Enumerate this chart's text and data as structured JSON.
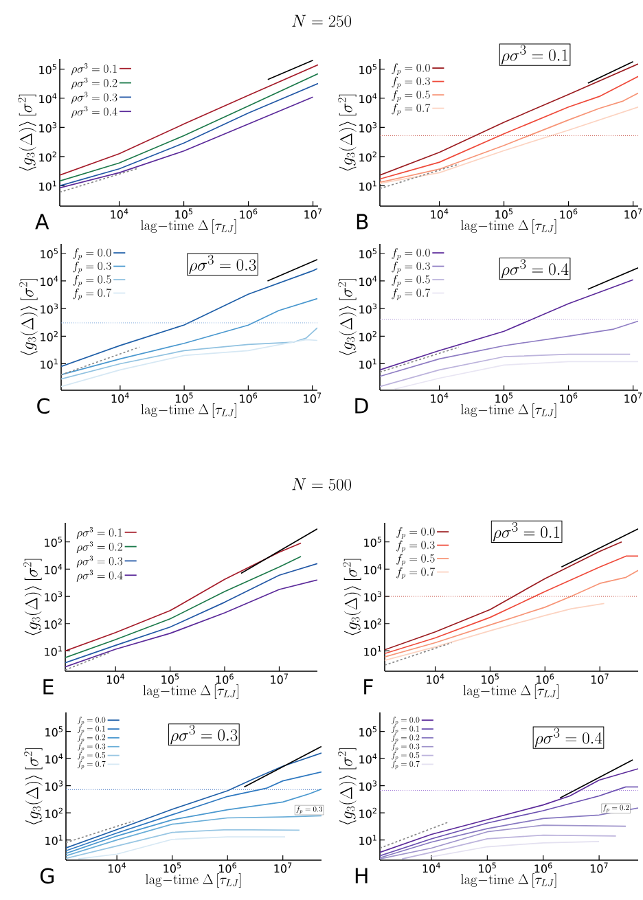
{
  "chart_data": [
    {
      "type": "line",
      "title": "N = 250",
      "xlabel": "\\mathrm{lag{-}time}\\;\\Delta\\,[\\tau_{LJ}]",
      "ylabel": "\\langle g_3(\\Delta)\\rangle\\,[\\sigma^2]",
      "log": "xy",
      "legend": "top left",
      "xlim": [
        1200,
        12000000
      ],
      "ylim": [
        2,
        220000
      ],
      "xticks": [
        {
          "value": 10000,
          "label": "10$^{4}$"
        },
        {
          "value": 100000,
          "label": "10$^{5}$"
        },
        {
          "value": 1000000,
          "label": "10$^{6}$"
        },
        {
          "value": 10000000,
          "label": "10$^{7}$"
        }
      ],
      "yticks": [
        {
          "value": 10,
          "label": "10$^{1}$"
        },
        {
          "value": 100,
          "label": "10$^{2}$"
        },
        {
          "value": 1000,
          "label": "10$^{3}$"
        },
        {
          "value": 10000,
          "label": "10$^{4}$"
        },
        {
          "value": 100000,
          "label": "10$^{5}$"
        }
      ],
      "annotations": [
        "A"
      ],
      "series": [
        {
          "name": "\\rho\\sigma^3 = 0.1",
          "color": "#a51c2a",
          "x": [
            1200,
            10000,
            100000,
            1000000,
            12000000
          ],
          "values": [
            23,
            125,
            1300,
            12600,
            140000
          ]
        },
        {
          "name": "\\rho\\sigma^3 = 0.2",
          "color": "#1d7a4b",
          "x": [
            1200,
            10000,
            100000,
            1000000,
            12000000
          ],
          "values": [
            14.5,
            60,
            520,
            5400,
            69000
          ]
        },
        {
          "name": "\\rho\\sigma^3 = 0.3",
          "color": "#2358a6",
          "x": [
            1200,
            10000,
            100000,
            1000000,
            12000000
          ],
          "values": [
            10,
            38,
            290,
            3100,
            32000
          ]
        },
        {
          "name": "\\rho\\sigma^3 = 0.4",
          "color": "#5b2a9a",
          "x": [
            1200,
            10000,
            100000,
            1000000,
            10000000
          ],
          "values": [
            8.5,
            28,
            155,
            1300,
            11000
          ]
        },
        {
          "color": "#000000",
          "x": [
            2000000,
            10000000
          ],
          "values": [
            44000,
            200000
          ]
        },
        {
          "color": "#888888",
          "line_style": "dashed",
          "x": [
            1200,
            20000
          ],
          "values": [
            6,
            40
          ]
        }
      ]
    },
    {
      "type": "line",
      "xlabel": "\\mathrm{lag{-}time}\\;\\Delta\\,[\\tau_{LJ}]",
      "ylabel": "\\langle g_3(\\Delta)\\rangle\\,[\\sigma^2]",
      "log": "xy",
      "legend": "top left",
      "xlim": [
        1200,
        12000000
      ],
      "ylim": [
        2,
        220000
      ],
      "xticks": [
        {
          "value": 10000,
          "label": "10$^{4}$"
        },
        {
          "value": 100000,
          "label": "10$^{5}$"
        },
        {
          "value": 1000000,
          "label": "10$^{6}$"
        },
        {
          "value": 10000000,
          "label": "10$^{7}$"
        }
      ],
      "yticks": [
        {
          "value": 10,
          "label": "10$^{1}$"
        },
        {
          "value": 100,
          "label": "10$^{2}$"
        },
        {
          "value": 1000,
          "label": "10$^{3}$"
        },
        {
          "value": 10000,
          "label": "10$^{4}$"
        },
        {
          "value": 100000,
          "label": "10$^{5}$"
        }
      ],
      "annotations": [
        "B",
        "\\rho\\sigma^3 = 0.1"
      ],
      "ref_lines": [
        {
          "axis": "y",
          "value": 525,
          "color": "#c0392b",
          "line_style": "dotted"
        }
      ],
      "series": [
        {
          "name": "f_p = 0.0",
          "color": "#9b1c20",
          "x": [
            1200,
            10000,
            100000,
            1000000,
            12000000
          ],
          "values": [
            23,
            140,
            1500,
            13500,
            150000
          ]
        },
        {
          "name": "f_p = 0.3",
          "color": "#ef4a3a",
          "x": [
            1200,
            10000,
            100000,
            1000000,
            3000000,
            12000000
          ],
          "values": [
            17,
            64,
            600,
            5000,
            11500,
            56000
          ]
        },
        {
          "name": "f_p = 0.5",
          "color": "#f79577",
          "x": [
            1200,
            10000,
            100000,
            1000000,
            3000000,
            7000000,
            12000000
          ],
          "values": [
            13,
            37,
            240,
            1800,
            4500,
            8000,
            15000
          ]
        },
        {
          "name": "f_p = 0.7",
          "color": "#fcd3c1",
          "x": [
            1200,
            10000,
            100000,
            1000000,
            12000000
          ],
          "values": [
            12,
            28,
            160,
            800,
            5000
          ]
        },
        {
          "color": "#000000",
          "x": [
            2000000,
            10000000
          ],
          "values": [
            33000,
            180000
          ]
        },
        {
          "color": "#888888",
          "line_style": "dashed",
          "x": [
            1200,
            20000
          ],
          "values": [
            8,
            55
          ]
        }
      ]
    },
    {
      "type": "line",
      "xlabel": "\\mathrm{lag{-}time}\\;\\Delta\\,[\\tau_{LJ}]",
      "ylabel": "\\langle g_3(\\Delta)\\rangle\\,[\\sigma^2]",
      "log": "xy",
      "legend": "top left",
      "xlim": [
        1200,
        12000000
      ],
      "ylim": [
        1.1,
        220000
      ],
      "xticks": [
        {
          "value": 10000,
          "label": "10$^{4}$"
        },
        {
          "value": 100000,
          "label": "10$^{5}$"
        },
        {
          "value": 1000000,
          "label": "10$^{6}$"
        },
        {
          "value": 10000000,
          "label": "10$^{7}$"
        }
      ],
      "yticks": [
        {
          "value": 10,
          "label": "10$^{1}$"
        },
        {
          "value": 100,
          "label": "10$^{2}$"
        },
        {
          "value": 1000,
          "label": "10$^{3}$"
        },
        {
          "value": 10000,
          "label": "10$^{4}$"
        },
        {
          "value": 100000,
          "label": "10$^{5}$"
        }
      ],
      "annotations": [
        "C",
        "\\rho\\sigma^3 = 0.3"
      ],
      "ref_lines": [
        {
          "axis": "y",
          "value": 300,
          "color": "#6f9fd8",
          "line_style": "dotted"
        }
      ],
      "series": [
        {
          "name": "f_p = 0.0",
          "color": "#1f5fa8",
          "x": [
            1200,
            10000,
            100000,
            1000000,
            10000000,
            12000000
          ],
          "values": [
            8,
            46,
            255,
            3300,
            23000,
            28000
          ]
        },
        {
          "name": "f_p = 0.3",
          "color": "#4a98cf",
          "x": [
            1200,
            10000,
            100000,
            1000000,
            3000000,
            12000000
          ],
          "values": [
            4,
            15,
            55,
            250,
            850,
            2300
          ]
        },
        {
          "name": "f_p = 0.5",
          "color": "#8fc1e0",
          "x": [
            1200,
            10000,
            100000,
            1000000,
            5000000,
            8000000,
            12000000
          ],
          "values": [
            2.8,
            10,
            30,
            50,
            60,
            85,
            200
          ]
        },
        {
          "name": "f_p = 0.7",
          "color": "#d6e8f4",
          "x": [
            1200,
            10000,
            100000,
            1000000,
            8000000,
            12000000
          ],
          "values": [
            1.5,
            6,
            20,
            30,
            75,
            70
          ]
        },
        {
          "color": "#000000",
          "x": [
            2000000,
            12000000
          ],
          "values": [
            10000,
            60000
          ]
        },
        {
          "color": "#888888",
          "line_style": "dashed",
          "x": [
            1200,
            20000
          ],
          "values": [
            4,
            40
          ]
        }
      ]
    },
    {
      "type": "line",
      "xlabel": "\\mathrm{lag{-}time}\\;\\Delta\\,[\\tau_{LJ}]",
      "ylabel": "\\langle g_3(\\Delta)\\rangle\\,[\\sigma^2]",
      "log": "xy",
      "legend": "top left",
      "xlim": [
        1200,
        12000000
      ],
      "ylim": [
        1.1,
        220000
      ],
      "xticks": [
        {
          "value": 10000,
          "label": "10$^{4}$"
        },
        {
          "value": 100000,
          "label": "10$^{5}$"
        },
        {
          "value": 1000000,
          "label": "10$^{6}$"
        },
        {
          "value": 10000000,
          "label": "10$^{7}$"
        }
      ],
      "yticks": [
        {
          "value": 10,
          "label": "10$^{1}$"
        },
        {
          "value": 100,
          "label": "10$^{2}$"
        },
        {
          "value": 1000,
          "label": "10$^{3}$"
        },
        {
          "value": 10000,
          "label": "10$^{4}$"
        },
        {
          "value": 100000,
          "label": "10$^{5}$"
        }
      ],
      "annotations": [
        "D",
        "\\rho\\sigma^3 = 0.4"
      ],
      "ref_lines": [
        {
          "axis": "y",
          "value": 400,
          "color": "#a58bd0",
          "line_style": "dotted"
        }
      ],
      "series": [
        {
          "name": "f_p = 0.0",
          "color": "#5b2a9a",
          "x": [
            1200,
            10000,
            100000,
            1000000,
            10000000
          ],
          "values": [
            6,
            30,
            150,
            1500,
            11000
          ]
        },
        {
          "name": "f_p = 0.3",
          "color": "#8e7cc3",
          "x": [
            1200,
            10000,
            100000,
            1000000,
            5000000,
            12000000
          ],
          "values": [
            3.5,
            15,
            45,
            100,
            180,
            350
          ]
        },
        {
          "name": "f_p = 0.5",
          "color": "#bcb3dc",
          "x": [
            1200,
            10000,
            100000,
            1000000,
            9000000
          ],
          "values": [
            1.5,
            6,
            18,
            22,
            22
          ]
        },
        {
          "name": "f_p = 0.7",
          "color": "#e8e5f3",
          "x": [
            2000,
            10000,
            100000,
            1000000,
            12000000
          ],
          "values": [
            1.2,
            3,
            9,
            12,
            12
          ]
        },
        {
          "color": "#000000",
          "x": [
            2000000,
            12000000
          ],
          "values": [
            5000,
            30000
          ]
        },
        {
          "color": "#888888",
          "line_style": "dashed",
          "x": [
            1200,
            20000
          ],
          "values": [
            5,
            40
          ]
        }
      ]
    },
    {
      "type": "line",
      "title": "N = 500",
      "xlabel": "\\mathrm{lag{-}time}\\;\\Delta\\,[\\tau_{LJ}]",
      "ylabel": "\\langle g_3(\\Delta)\\rangle\\,[\\sigma^2]",
      "log": "xy",
      "legend": "top left",
      "xlim": [
        1200,
        50000000
      ],
      "ylim": [
        1.8,
        500000
      ],
      "xticks": [
        {
          "value": 10000,
          "label": "10$^{4}$"
        },
        {
          "value": 100000,
          "label": "10$^{5}$"
        },
        {
          "value": 1000000,
          "label": "10$^{6}$"
        },
        {
          "value": 10000000,
          "label": "10$^{7}$"
        }
      ],
      "yticks": [
        {
          "value": 10,
          "label": "10$^{1}$"
        },
        {
          "value": 100,
          "label": "10$^{2}$"
        },
        {
          "value": 1000,
          "label": "10$^{3}$"
        },
        {
          "value": 10000,
          "label": "10$^{4}$"
        },
        {
          "value": 100000,
          "label": "10$^{5}$"
        }
      ],
      "annotations": [
        "E"
      ],
      "series": [
        {
          "name": "\\rho\\sigma^3 = 0.1",
          "color": "#a51c2a",
          "x": [
            1200,
            10000,
            100000,
            1000000,
            10000000,
            25000000
          ],
          "values": [
            10,
            47,
            300,
            4200,
            42000,
            90000
          ]
        },
        {
          "name": "\\rho\\sigma^3 = 0.2",
          "color": "#1d7a4b",
          "x": [
            1200,
            10000,
            100000,
            1000000,
            10000000,
            25000000
          ],
          "values": [
            5.7,
            26,
            150,
            1500,
            12000,
            29000
          ]
        },
        {
          "name": "\\rho\\sigma^3 = 0.3",
          "color": "#2358a6",
          "x": [
            1200,
            10000,
            100000,
            1000000,
            10000000,
            50000000
          ],
          "values": [
            3.7,
            16,
            75,
            610,
            6000,
            16000
          ]
        },
        {
          "name": "\\rho\\sigma^3 = 0.4",
          "color": "#5b2a9a",
          "x": [
            1200,
            10000,
            100000,
            1000000,
            10000000,
            50000000
          ],
          "values": [
            2.6,
            11.5,
            44,
            250,
            1800,
            4000
          ]
        },
        {
          "color": "#000000",
          "x": [
            2000000,
            50000000
          ],
          "values": [
            7000,
            300000
          ]
        },
        {
          "color": "#888888",
          "line_style": "dashed",
          "x": [
            1200,
            8000
          ],
          "values": [
            2,
            9
          ]
        }
      ]
    },
    {
      "type": "line",
      "xlabel": "\\mathrm{lag{-}time}\\;\\Delta\\,[\\tau_{LJ}]",
      "ylabel": "\\langle g_3(\\Delta)\\rangle\\,[\\sigma^2]",
      "log": "xy",
      "legend": "top left",
      "xlim": [
        1200,
        50000000
      ],
      "ylim": [
        1.8,
        500000
      ],
      "xticks": [
        {
          "value": 10000,
          "label": "10$^{4}$"
        },
        {
          "value": 100000,
          "label": "10$^{5}$"
        },
        {
          "value": 1000000,
          "label": "10$^{6}$"
        },
        {
          "value": 10000000,
          "label": "10$^{7}$"
        }
      ],
      "yticks": [
        {
          "value": 10,
          "label": "10$^{1}$"
        },
        {
          "value": 100,
          "label": "10$^{2}$"
        },
        {
          "value": 1000,
          "label": "10$^{3}$"
        },
        {
          "value": 10000,
          "label": "10$^{4}$"
        },
        {
          "value": 100000,
          "label": "10$^{5}$"
        }
      ],
      "annotations": [
        "F",
        "\\rho\\sigma^3 = 0.1"
      ],
      "ref_lines": [
        {
          "axis": "y",
          "value": 1000,
          "color": "#c0392b",
          "line_style": "dotted"
        }
      ],
      "series": [
        {
          "name": "f_p = 0.0",
          "color": "#9b1c20",
          "x": [
            1200,
            10000,
            100000,
            1000000,
            10000000,
            25000000
          ],
          "values": [
            11,
            50,
            330,
            4500,
            45000,
            100000
          ]
        },
        {
          "name": "f_p = 0.3",
          "color": "#ef4a3a",
          "x": [
            1200,
            10000,
            100000,
            1000000,
            10000000,
            30000000,
            50000000
          ],
          "values": [
            8,
            30,
            170,
            1500,
            12000,
            30000,
            30000
          ]
        },
        {
          "name": "f_p = 0.5",
          "color": "#f79577",
          "x": [
            1200,
            10000,
            100000,
            1000000,
            3000000,
            10000000,
            30000000,
            50000000
          ],
          "values": [
            6,
            20,
            90,
            400,
            1000,
            3000,
            5000,
            9000
          ]
        },
        {
          "name": "f_p = 0.7",
          "color": "#fcd3c1",
          "x": [
            1200,
            10000,
            100000,
            1000000,
            3000000,
            12000000
          ],
          "values": [
            4.5,
            14,
            55,
            200,
            350,
            550
          ]
        },
        {
          "color": "#000000",
          "x": [
            2000000,
            50000000
          ],
          "values": [
            12000,
            300000
          ]
        },
        {
          "color": "#888888",
          "line_style": "dashed",
          "x": [
            1200,
            20000
          ],
          "values": [
            3,
            20
          ]
        }
      ]
    },
    {
      "type": "line",
      "xlabel": "\\mathrm{lag{-}time}\\;\\Delta\\,[\\tau_{LJ}]",
      "ylabel": "\\langle g_3(\\Delta)\\rangle\\,[\\sigma^2]",
      "log": "xy",
      "legend": "top left",
      "xlim": [
        1200,
        50000000
      ],
      "ylim": [
        1.8,
        500000
      ],
      "xticks": [
        {
          "value": 10000,
          "label": "10$^{4}$"
        },
        {
          "value": 100000,
          "label": "10$^{5}$"
        },
        {
          "value": 1000000,
          "label": "10$^{6}$"
        },
        {
          "value": 10000000,
          "label": "10$^{7}$"
        }
      ],
      "yticks": [
        {
          "value": 10,
          "label": "10$^{1}$"
        },
        {
          "value": 100,
          "label": "10$^{2}$"
        },
        {
          "value": 1000,
          "label": "10$^{3}$"
        },
        {
          "value": 10000,
          "label": "10$^{4}$"
        },
        {
          "value": 100000,
          "label": "10$^{5}$"
        }
      ],
      "annotations": [
        "G",
        "\\rho\\sigma^3 = 0.3",
        {
          "text": "f_p = 0.3",
          "x": 30000000,
          "y": 70
        }
      ],
      "ref_lines": [
        {
          "axis": "y",
          "value": 720,
          "color": "#3a6fc0",
          "line_style": "dotted"
        }
      ],
      "series": [
        {
          "name": "f_p = 0.0",
          "color": "#1f5fa8",
          "x": [
            1200,
            10000,
            100000,
            1000000,
            3000000,
            10000000,
            50000000
          ],
          "values": [
            5.1,
            24,
            135,
            650,
            1800,
            5200,
            16000
          ]
        },
        {
          "name": "f_p = 0.1",
          "color": "#2e78c0",
          "x": [
            1200,
            10000,
            100000,
            1000000,
            5000000,
            10000000,
            50000000
          ],
          "values": [
            4,
            18,
            85,
            400,
            800,
            1500,
            3200
          ]
        },
        {
          "name": "f_p = 0.2",
          "color": "#4a98cf",
          "x": [
            1200,
            10000,
            100000,
            1000000,
            10000000,
            30000000,
            50000000
          ],
          "values": [
            3.2,
            14,
            55,
            130,
            250,
            500,
            750
          ]
        },
        {
          "name": "f_p = 0.3",
          "color": "#6aaed8",
          "x": [
            1200,
            10000,
            100000,
            1000000,
            10000000,
            50000000
          ],
          "values": [
            2.6,
            10,
            38,
            65,
            70,
            78
          ]
        },
        {
          "name": "f_p = 0.5",
          "color": "#98c6e3",
          "x": [
            1200,
            10000,
            100000,
            1000000,
            20000000
          ],
          "values": [
            2.1,
            6,
            19,
            24,
            23
          ]
        },
        {
          "name": "f_p = 0.7",
          "color": "#d6e8f4",
          "x": [
            2000,
            10000,
            100000,
            1000000,
            11000000
          ],
          "values": [
            2,
            3,
            10.5,
            13,
            13
          ]
        },
        {
          "color": "#000000",
          "x": [
            2000000,
            50000000
          ],
          "values": [
            900,
            28000
          ]
        },
        {
          "color": "#888888",
          "line_style": "dashed",
          "x": [
            1200,
            20000
          ],
          "values": [
            8,
            50
          ]
        }
      ]
    },
    {
      "type": "line",
      "xlabel": "\\mathrm{lag{-}time}\\;\\Delta\\,[\\tau_{LJ}]",
      "ylabel": "\\langle g_3(\\Delta)\\rangle\\,[\\sigma^2]",
      "log": "xy",
      "legend": "top left",
      "xlim": [
        1200,
        50000000
      ],
      "ylim": [
        1.8,
        500000
      ],
      "xticks": [
        {
          "value": 10000,
          "label": "10$^{4}$"
        },
        {
          "value": 100000,
          "label": "10$^{5}$"
        },
        {
          "value": 1000000,
          "label": "10$^{6}$"
        },
        {
          "value": 10000000,
          "label": "10$^{7}$"
        }
      ],
      "yticks": [
        {
          "value": 10,
          "label": "10$^{1}$"
        },
        {
          "value": 100,
          "label": "10$^{2}$"
        },
        {
          "value": 1000,
          "label": "10$^{3}$"
        },
        {
          "value": 10000,
          "label": "10$^{4}$"
        },
        {
          "value": 100000,
          "label": "10$^{5}$"
        }
      ],
      "annotations": [
        "H",
        "\\rho\\sigma^3 = 0.4",
        {
          "text": "f_p = 0.2",
          "x": 20000000,
          "y": 80
        }
      ],
      "ref_lines": [
        {
          "axis": "y",
          "value": 660,
          "color": "#8e5fd0",
          "line_style": "dotted"
        }
      ],
      "series": [
        {
          "name": "f_p = 0.0",
          "color": "#5b2a9a",
          "x": [
            1200,
            10000,
            100000,
            1000000,
            3000000,
            10000000,
            50000000
          ],
          "values": [
            3.5,
            16,
            56,
            195,
            420,
            1600,
            4200
          ]
        },
        {
          "name": "f_p = 0.1",
          "color": "#6a4fb0",
          "x": [
            1200,
            10000,
            100000,
            1000000,
            10000000,
            30000000,
            50000000
          ],
          "values": [
            2.6,
            11,
            42,
            120,
            420,
            900,
            900
          ]
        },
        {
          "name": "f_p = 0.2",
          "color": "#8677c0",
          "x": [
            1200,
            10000,
            100000,
            1000000,
            10000000,
            50000000
          ],
          "values": [
            2.2,
            8.3,
            26,
            62,
            83,
            150
          ]
        },
        {
          "name": "f_p = 0.3",
          "color": "#9f94cb",
          "x": [
            1200,
            10000,
            100000,
            1000000,
            30000000
          ],
          "values": [
            2,
            5,
            20,
            35,
            32
          ]
        },
        {
          "name": "f_p = 0.5",
          "color": "#bcb3dc",
          "x": [
            3000,
            10000,
            100000,
            1000000,
            20000000
          ],
          "values": [
            2,
            3.5,
            11,
            15,
            14
          ]
        },
        {
          "name": "f_p = 0.7",
          "color": "#e3e0f0",
          "x": [
            10000,
            100000,
            1000000,
            10000000
          ],
          "values": [
            2.4,
            5.6,
            7.8,
            8.7
          ]
        },
        {
          "color": "#000000",
          "x": [
            2000000,
            40000000
          ],
          "values": [
            350,
            9000
          ]
        },
        {
          "color": "#888888",
          "line_style": "dashed",
          "x": [
            1200,
            20000
          ],
          "values": [
            5,
            45
          ]
        }
      ]
    }
  ]
}
